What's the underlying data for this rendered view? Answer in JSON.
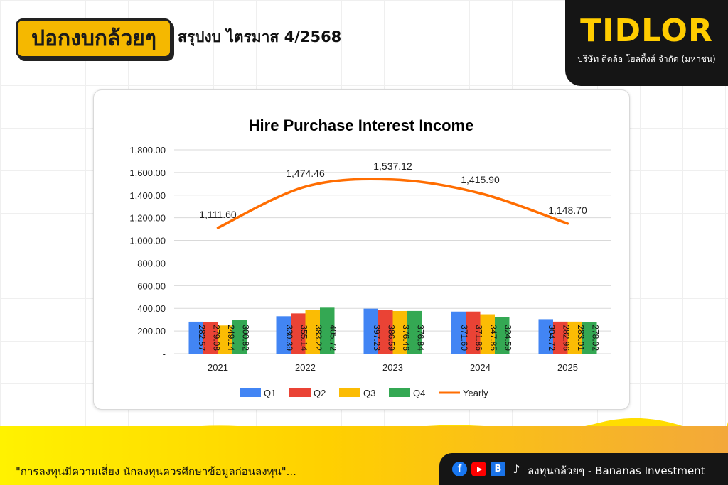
{
  "header": {
    "logo_text": "ปอกงบกล้วยๆ",
    "title": "สรุปงบ ไตรมาส 4/2568"
  },
  "brand": {
    "name": "TIDLOR",
    "subtitle": "บริษัท ติดล้อ โฮลดิ้งส์ จำกัด (มหาชน)"
  },
  "chart_data": {
    "type": "bar",
    "title": "Hire Purchase Interest Income",
    "categories": [
      "2021",
      "2022",
      "2023",
      "2024",
      "2025"
    ],
    "series": [
      {
        "name": "Q1",
        "color": "#4285f4",
        "values": [
          282.57,
          330.39,
          397.23,
          371.6,
          304.72
        ]
      },
      {
        "name": "Q2",
        "color": "#ea4335",
        "values": [
          279.08,
          355.14,
          386.59,
          371.86,
          282.96
        ]
      },
      {
        "name": "Q3",
        "color": "#fbbc04",
        "values": [
          249.14,
          383.22,
          376.46,
          347.85,
          283.01
        ]
      },
      {
        "name": "Q4",
        "color": "#34a853",
        "values": [
          300.82,
          405.72,
          376.84,
          324.59,
          278.02
        ]
      }
    ],
    "line_series": {
      "name": "Yearly",
      "color": "#ff6d01",
      "values": [
        1111.6,
        1474.46,
        1537.12,
        1415.9,
        1148.7
      ]
    },
    "bar_labels": [
      [
        "282.57",
        "330.39",
        "397.23",
        "371.60",
        "304.72"
      ],
      [
        "279.08",
        "355.14",
        "386.59",
        "371.86",
        "282.96"
      ],
      [
        "249.14",
        "383.22",
        "376.46",
        "347.85",
        "283.01"
      ],
      [
        "300.82",
        "405.72",
        "376.84",
        "324.59",
        "278.02"
      ]
    ],
    "line_labels": [
      "1,111.60",
      "1,474.46",
      "1,537.12",
      "1,415.90",
      "1,148.70"
    ],
    "ylim": [
      0,
      1800
    ],
    "yticks": [
      0,
      200,
      400,
      600,
      800,
      1000,
      1200,
      1400,
      1600,
      1800
    ],
    "ytick_labels": [
      "-",
      "200.00",
      "400.00",
      "600.00",
      "800.00",
      "1,000.00",
      "1,200.00",
      "1,400.00",
      "1,600.00",
      "1,800.00"
    ],
    "grid": true,
    "legend": "bottom"
  },
  "footer": {
    "disclaimer": "\"การลงทุนมีความเสี่ยง นักลงทุนควรศึกษาข้อมูลก่อนลงทุน\"...",
    "social_text": "ลงทุนกล้วยๆ - Bananas Investment",
    "icons": [
      "facebook-icon",
      "youtube-icon",
      "blockdit-icon",
      "tiktok-icon"
    ]
  }
}
